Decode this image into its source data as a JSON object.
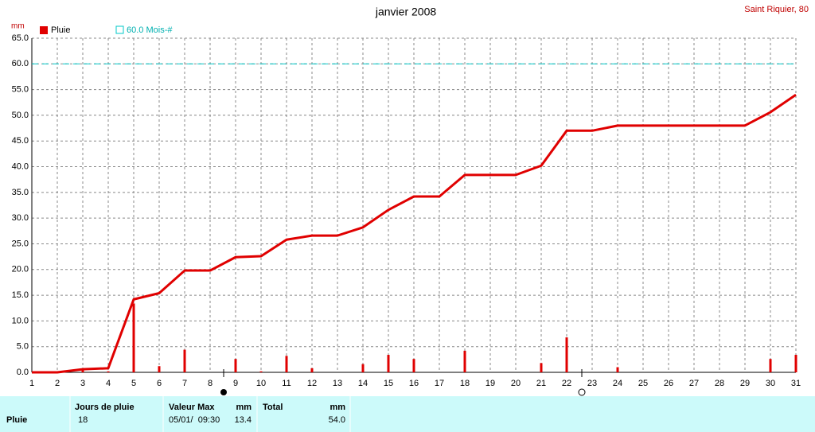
{
  "chart_data": {
    "type": "bar",
    "unit_label": "mm",
    "title": "janvier 2008",
    "station": "Saint Riquier, 80",
    "categories": [
      1,
      2,
      3,
      4,
      5,
      6,
      7,
      8,
      9,
      10,
      11,
      12,
      13,
      14,
      15,
      16,
      17,
      18,
      19,
      20,
      21,
      22,
      23,
      24,
      25,
      26,
      27,
      28,
      29,
      30,
      31
    ],
    "series": [
      {
        "name": "Pluie",
        "color": "#e00000",
        "values": [
          0,
          0,
          0.6,
          0.2,
          13.4,
          1.2,
          4.4,
          0,
          2.6,
          0.2,
          3.2,
          0.8,
          0,
          1.6,
          3.4,
          2.6,
          0,
          4.2,
          0,
          0,
          1.8,
          6.8,
          0,
          1.0,
          0,
          0,
          0,
          0,
          0,
          2.6,
          3.4
        ],
        "cumulative": [
          0,
          0,
          0.6,
          0.8,
          14.2,
          15.4,
          19.8,
          19.8,
          22.4,
          22.6,
          25.8,
          26.6,
          26.6,
          28.2,
          31.6,
          34.2,
          34.2,
          38.4,
          38.4,
          38.4,
          40.2,
          47.0,
          47.0,
          48.0,
          48.0,
          48.0,
          48.0,
          48.0,
          48.0,
          50.6,
          54.0
        ]
      }
    ],
    "reference_line": {
      "value": 60,
      "label": "60.0 Mois-#",
      "color": "#00c8c8"
    },
    "xlim": [
      1,
      31
    ],
    "xticks": [
      1,
      2,
      3,
      4,
      5,
      6,
      7,
      8,
      9,
      10,
      11,
      12,
      13,
      14,
      15,
      16,
      17,
      18,
      19,
      20,
      21,
      22,
      23,
      24,
      25,
      26,
      27,
      28,
      29,
      30,
      31
    ],
    "ylim": [
      0,
      65
    ],
    "yticks": [
      {
        "value": 0,
        "label": "0.0"
      },
      {
        "value": 5,
        "label": "5.0"
      },
      {
        "value": 10,
        "label": "10.0"
      },
      {
        "value": 15,
        "label": "15.0"
      },
      {
        "value": 20,
        "label": "20.0"
      },
      {
        "value": 25,
        "label": "25.0"
      },
      {
        "value": 30,
        "label": "30.0"
      },
      {
        "value": 35,
        "label": "35.0"
      },
      {
        "value": 40,
        "label": "40.0"
      },
      {
        "value": 45,
        "label": "45.0"
      },
      {
        "value": 50,
        "label": "50.0"
      },
      {
        "value": 55,
        "label": "55.0"
      },
      {
        "value": 60,
        "label": "60.0"
      },
      {
        "value": 65,
        "label": "65.0"
      }
    ],
    "grid": true
  },
  "table": {
    "headers": [
      "Jours de pluie",
      "Valeur Max",
      "mm",
      "Total",
      "mm"
    ],
    "rows": [
      [
        "Pluie",
        "18",
        "05/01/  09:30",
        "13.4",
        "54.0"
      ]
    ]
  }
}
